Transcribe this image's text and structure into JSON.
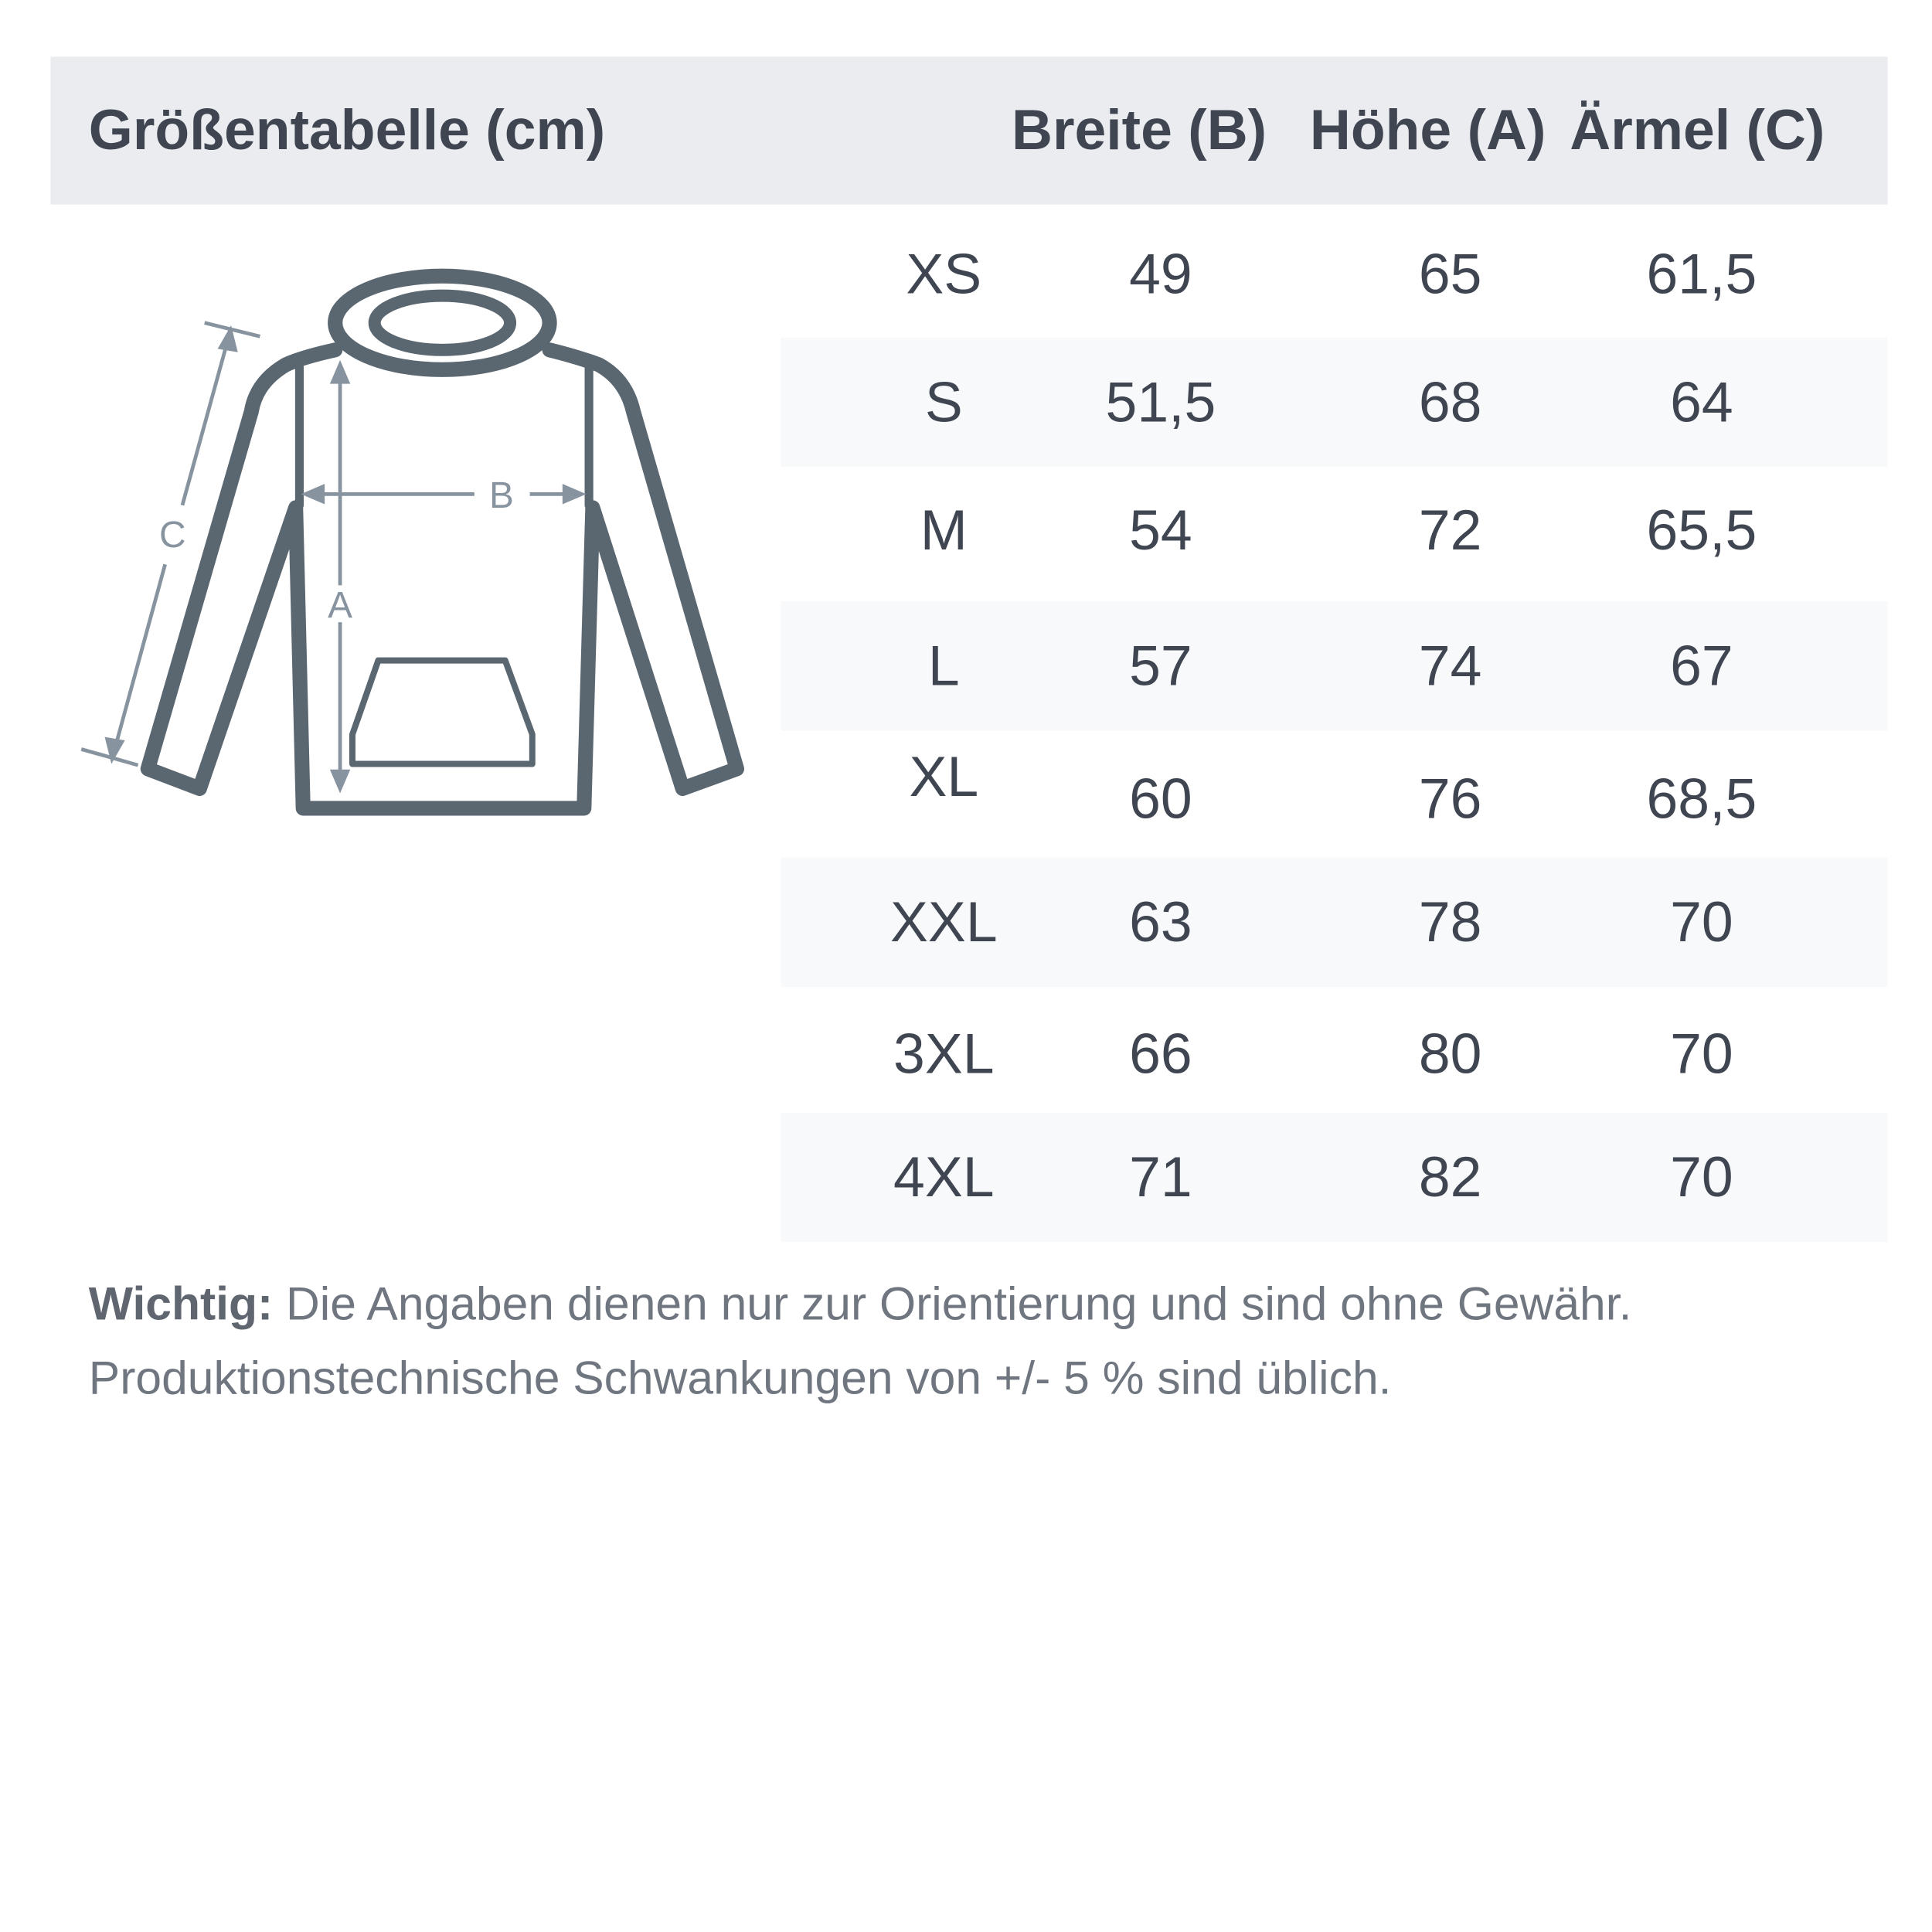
{
  "title": "Größentabelle (cm)",
  "columns": [
    "Breite (B)",
    "Höhe (A)",
    "Ärmel (C)"
  ],
  "rows": [
    {
      "size": "XS",
      "breite": "49",
      "hoehe": "65",
      "aermel": "61,5"
    },
    {
      "size": "S",
      "breite": "51,5",
      "hoehe": "68",
      "aermel": "64"
    },
    {
      "size": "M",
      "breite": "54",
      "hoehe": "72",
      "aermel": "65,5"
    },
    {
      "size": "L",
      "breite": "57",
      "hoehe": "74",
      "aermel": "67"
    },
    {
      "size": "XL",
      "breite": "60",
      "hoehe": "76",
      "aermel": "68,5"
    },
    {
      "size": "XXL",
      "breite": "63",
      "hoehe": "78",
      "aermel": "70"
    },
    {
      "size": "3XL",
      "breite": "66",
      "hoehe": "80",
      "aermel": "70"
    },
    {
      "size": "4XL",
      "breite": "71",
      "hoehe": "82",
      "aermel": "70"
    }
  ],
  "diagram": {
    "label_a": "A",
    "label_b": "B",
    "label_c": "C",
    "icon": "hoodie-icon"
  },
  "note": {
    "bold": "Wichtig:",
    "line1": " Die Angaben dienen nur zur Orientierung und sind ohne Gewähr.",
    "line2": "Produktionstechnische Schwankungen von +/- 5 % sind üblich."
  },
  "colors": {
    "header_bg": "#ebecf0",
    "stripe_bg": "#f8f9fb",
    "text": "#3f4652",
    "hoodie": "#5a6670",
    "measure": "#8794a0"
  }
}
